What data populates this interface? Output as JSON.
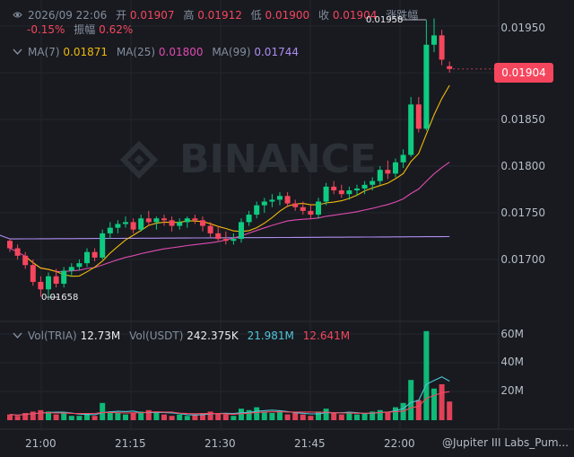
{
  "header": {
    "datetime": "2026/09 22:06",
    "open_label": "开",
    "open": "0.01907",
    "high_label": "高",
    "high": "0.01912",
    "low_label": "低",
    "low": "0.01900",
    "close_label": "收",
    "close": "0.01904",
    "change_label": "涨跌幅",
    "change": "-0.15%",
    "amplitude_label": "振幅",
    "amplitude": "0.62%"
  },
  "ma": {
    "ma7_label": "MA(7)",
    "ma7": "0.01871",
    "ma25_label": "MA(25)",
    "ma25": "0.01800",
    "ma99_label": "MA(99)",
    "ma99": "0.01744"
  },
  "volume": {
    "vol_label": "Vol(TRIA)",
    "vol": "12.73M",
    "usdt_label": "Vol(USDT)",
    "usdt": "242.375K",
    "ma_a": "21.981M",
    "ma_b": "12.641M"
  },
  "price_axis": [
    "0.01950",
    "0.01900",
    "0.01850",
    "0.01800",
    "0.01750",
    "0.01700"
  ],
  "volume_axis": [
    "60M",
    "40M",
    "20M"
  ],
  "time_axis": [
    "21:00",
    "21:15",
    "21:30",
    "21:45",
    "22:00"
  ],
  "current_price": "0.01904",
  "high_mark": "0.01958",
  "low_mark": "0.01658",
  "watermark_text": "BINANCE",
  "footer_credit": "@Jupiter III Labs_Pum...",
  "colors": {
    "up": "#0ecb81",
    "down": "#f6465d",
    "ma7": "#f0b90b",
    "ma25": "#e04baf",
    "ma99": "#b08cf0",
    "bg": "#181a20"
  },
  "chart_data": {
    "type": "candlestick",
    "interval_minutes": 1,
    "ylim": [
      0.0165,
      0.0197
    ],
    "volume_ylim": [
      0,
      65
    ],
    "candles": [
      [
        0.0172,
        0.01722,
        0.01708,
        0.01712,
        4
      ],
      [
        0.01712,
        0.01716,
        0.017,
        0.01704,
        3
      ],
      [
        0.01704,
        0.01708,
        0.0169,
        0.01694,
        5
      ],
      [
        0.01694,
        0.017,
        0.01672,
        0.01676,
        6
      ],
      [
        0.01676,
        0.01682,
        0.0166,
        0.01668,
        7
      ],
      [
        0.01668,
        0.01686,
        0.01658,
        0.01682,
        6
      ],
      [
        0.01682,
        0.0169,
        0.0167,
        0.01674,
        4
      ],
      [
        0.01674,
        0.01692,
        0.0167,
        0.01688,
        5
      ],
      [
        0.01688,
        0.01696,
        0.01682,
        0.01692,
        3
      ],
      [
        0.01692,
        0.017,
        0.01688,
        0.01696,
        3
      ],
      [
        0.01696,
        0.01712,
        0.01692,
        0.01708,
        5
      ],
      [
        0.01708,
        0.01712,
        0.01698,
        0.01702,
        3
      ],
      [
        0.01702,
        0.01732,
        0.017,
        0.01728,
        12
      ],
      [
        0.01728,
        0.0174,
        0.01722,
        0.01734,
        6
      ],
      [
        0.01734,
        0.01742,
        0.01728,
        0.01738,
        5
      ],
      [
        0.01738,
        0.01746,
        0.01734,
        0.0174,
        4
      ],
      [
        0.0174,
        0.01744,
        0.01728,
        0.01732,
        5
      ],
      [
        0.01732,
        0.01748,
        0.0173,
        0.01744,
        6
      ],
      [
        0.01744,
        0.01752,
        0.01736,
        0.0174,
        7
      ],
      [
        0.0174,
        0.01746,
        0.01732,
        0.01744,
        5
      ],
      [
        0.01744,
        0.01748,
        0.01736,
        0.01742,
        4
      ],
      [
        0.01742,
        0.01746,
        0.0173,
        0.01736,
        3
      ],
      [
        0.01736,
        0.01744,
        0.01732,
        0.0174,
        4
      ],
      [
        0.0174,
        0.01746,
        0.01734,
        0.01744,
        3
      ],
      [
        0.01744,
        0.01748,
        0.01738,
        0.01742,
        4
      ],
      [
        0.01742,
        0.01746,
        0.0173,
        0.01736,
        5
      ],
      [
        0.01736,
        0.0174,
        0.01724,
        0.01728,
        6
      ],
      [
        0.01728,
        0.01736,
        0.0172,
        0.01722,
        5
      ],
      [
        0.01722,
        0.0173,
        0.01716,
        0.0172,
        4
      ],
      [
        0.0172,
        0.01728,
        0.01716,
        0.01722,
        3
      ],
      [
        0.01722,
        0.01744,
        0.01718,
        0.0174,
        8
      ],
      [
        0.0174,
        0.01752,
        0.01736,
        0.01748,
        7
      ],
      [
        0.01748,
        0.01762,
        0.01744,
        0.01758,
        9
      ],
      [
        0.01758,
        0.01766,
        0.0175,
        0.01762,
        6
      ],
      [
        0.01762,
        0.0177,
        0.01756,
        0.01764,
        5
      ],
      [
        0.01764,
        0.01772,
        0.01758,
        0.01768,
        6
      ],
      [
        0.01768,
        0.01772,
        0.01756,
        0.0176,
        4
      ],
      [
        0.0176,
        0.01764,
        0.01752,
        0.01756,
        5
      ],
      [
        0.01756,
        0.01762,
        0.01748,
        0.01752,
        4
      ],
      [
        0.01752,
        0.01758,
        0.01744,
        0.01748,
        3
      ],
      [
        0.01748,
        0.01766,
        0.01744,
        0.01762,
        6
      ],
      [
        0.01762,
        0.01782,
        0.01758,
        0.01778,
        8
      ],
      [
        0.01778,
        0.01784,
        0.0177,
        0.01774,
        5
      ],
      [
        0.01774,
        0.0178,
        0.01766,
        0.0177,
        4
      ],
      [
        0.0177,
        0.01778,
        0.01764,
        0.01774,
        5
      ],
      [
        0.01774,
        0.0178,
        0.01768,
        0.01776,
        4
      ],
      [
        0.01776,
        0.01784,
        0.0177,
        0.0178,
        5
      ],
      [
        0.0178,
        0.01788,
        0.01774,
        0.01784,
        6
      ],
      [
        0.01784,
        0.018,
        0.0178,
        0.01796,
        7
      ],
      [
        0.01796,
        0.01806,
        0.01786,
        0.01792,
        6
      ],
      [
        0.01792,
        0.01808,
        0.01788,
        0.01804,
        9
      ],
      [
        0.01804,
        0.01818,
        0.01798,
        0.01812,
        12
      ],
      [
        0.01812,
        0.01874,
        0.0181,
        0.01866,
        28
      ],
      [
        0.01866,
        0.01874,
        0.01836,
        0.0184,
        14
      ],
      [
        0.0184,
        0.01956,
        0.01838,
        0.0193,
        62
      ],
      [
        0.0193,
        0.01958,
        0.01922,
        0.0194,
        22
      ],
      [
        0.0194,
        0.01946,
        0.01908,
        0.01914,
        25
      ],
      [
        0.01907,
        0.01912,
        0.019,
        0.01904,
        13
      ]
    ]
  }
}
